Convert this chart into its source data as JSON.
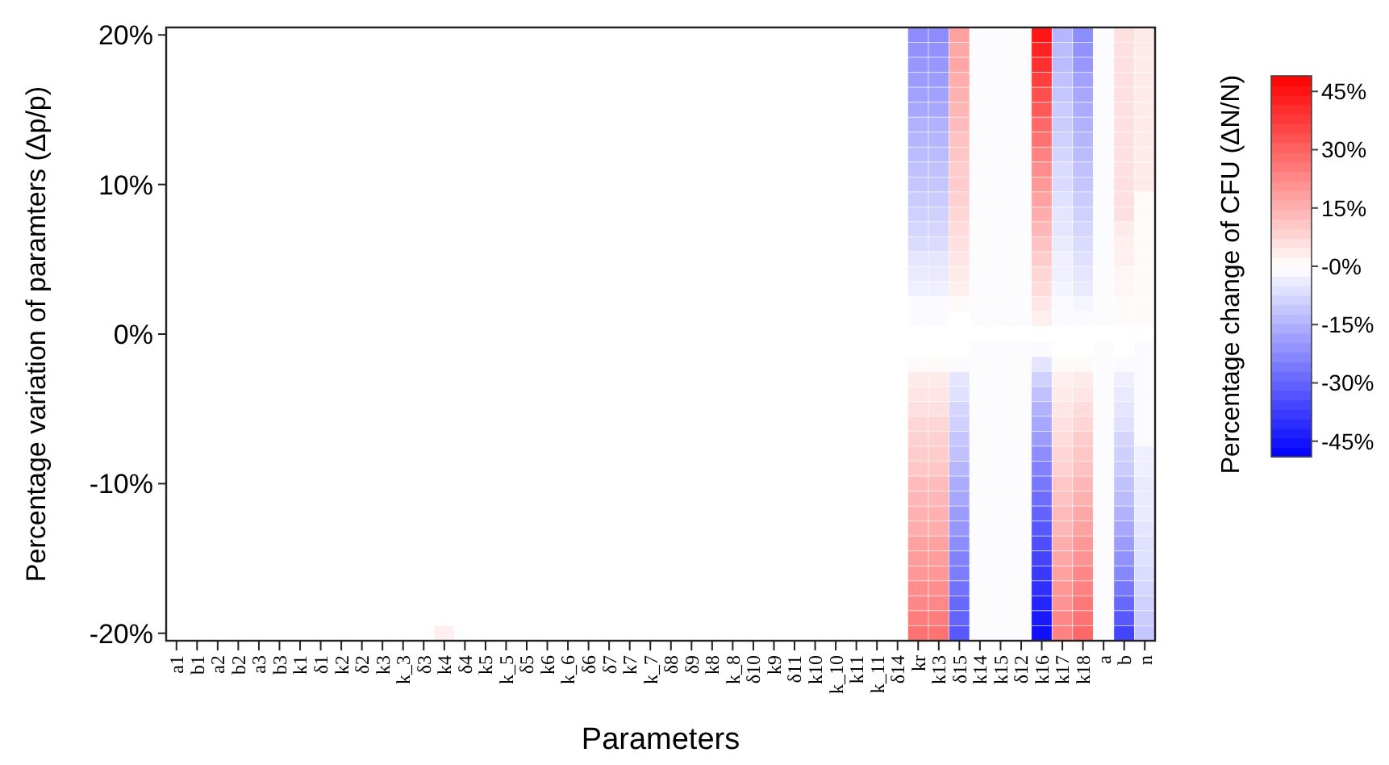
{
  "chart_data": {
    "type": "heatmap",
    "xlabel": "Parameters",
    "ylabel": "Percentage variation of paramters (Δp/p)",
    "clabel": "Percentage change of CFU (ΔN/N)",
    "categories": [
      "a1",
      "b1",
      "a2",
      "b2",
      "a3",
      "b3",
      "k1",
      "δ1",
      "k2",
      "δ2",
      "k3",
      "k_3",
      "δ3",
      "k4",
      "δ4",
      "k5",
      "k_5",
      "δ5",
      "k6",
      "k_6",
      "δ6",
      "δ7",
      "k7",
      "k_7",
      "δ8",
      "δ9",
      "k8",
      "k_8",
      "δ10",
      "k9",
      "δ11",
      "k10",
      "k_10",
      "k11",
      "k_11",
      "δ14",
      "kr",
      "k13",
      "δ15",
      "k14",
      "k15",
      "δ12",
      "k16",
      "k17",
      "k18",
      "a",
      "b",
      "n"
    ],
    "y_categories": [
      "20%",
      null,
      null,
      null,
      null,
      null,
      null,
      null,
      null,
      null,
      "10%",
      null,
      null,
      null,
      null,
      null,
      null,
      null,
      null,
      null,
      "0%",
      null,
      null,
      null,
      null,
      null,
      null,
      null,
      null,
      null,
      "-10%",
      null,
      null,
      null,
      null,
      null,
      null,
      null,
      null,
      null,
      "-20%"
    ],
    "clim": [
      -49,
      49
    ],
    "cticks": [
      {
        "value": -45,
        "label": "-45%"
      },
      {
        "value": -30,
        "label": "-30%"
      },
      {
        "value": -15,
        "label": "-15%"
      },
      {
        "value": 0,
        "label": "-0%"
      },
      {
        "value": 15,
        "label": "15%"
      },
      {
        "value": 30,
        "label": "30%"
      },
      {
        "value": 45,
        "label": "45%"
      }
    ],
    "cells": [
      [
        0,
        0,
        0,
        0,
        0,
        0,
        0,
        0,
        0,
        0,
        0,
        0,
        0,
        0,
        0,
        0,
        0,
        0,
        0,
        0,
        0,
        0,
        0,
        0,
        0,
        0,
        0,
        0,
        0,
        0,
        0,
        0,
        0,
        0,
        0,
        0,
        -22,
        -22,
        18,
        -0.5,
        -0.5,
        -0.5,
        45,
        -14,
        -22,
        -0.5,
        6,
        4
      ],
      [
        0,
        0,
        0,
        0,
        0,
        0,
        0,
        0,
        0,
        0,
        0,
        0,
        0,
        0,
        0,
        0,
        0,
        0,
        0,
        0,
        0,
        0,
        0,
        0,
        0,
        0,
        0,
        0,
        0,
        0,
        0,
        0,
        0,
        0,
        0,
        0,
        -21,
        -21,
        17,
        -0.5,
        -0.5,
        -0.5,
        42,
        -13,
        -21,
        -0.5,
        6,
        4
      ],
      [
        0,
        0,
        0,
        0,
        0,
        0,
        0,
        0,
        0,
        0,
        0,
        0,
        0,
        0,
        0,
        0,
        0,
        0,
        0,
        0,
        0,
        0,
        0,
        0,
        0,
        0,
        0,
        0,
        0,
        0,
        0,
        0,
        0,
        0,
        0,
        0,
        -20,
        -20,
        17,
        -0.5,
        -0.5,
        -0.5,
        40,
        -13,
        -20,
        -0.5,
        6,
        4
      ],
      [
        0,
        0,
        0,
        0,
        0,
        0,
        0,
        0,
        0,
        0,
        0,
        0,
        0,
        0,
        0,
        0,
        0,
        0,
        0,
        0,
        0,
        0,
        0,
        0,
        0,
        0,
        0,
        0,
        0,
        0,
        0,
        0,
        0,
        0,
        0,
        0,
        -19,
        -19,
        16,
        -0.5,
        -0.5,
        -0.5,
        37,
        -12,
        -18,
        -0.5,
        6,
        4
      ],
      [
        0,
        0,
        0,
        0,
        0,
        0,
        0,
        0,
        0,
        0,
        0,
        0,
        0,
        0,
        0,
        0,
        0,
        0,
        0,
        0,
        0,
        0,
        0,
        0,
        0,
        0,
        0,
        0,
        0,
        0,
        0,
        0,
        0,
        0,
        0,
        0,
        -18,
        -18,
        15,
        -0.5,
        -0.5,
        -0.5,
        34,
        -11,
        -17,
        -0.5,
        6,
        4
      ],
      [
        0,
        0,
        0,
        0,
        0,
        0,
        0,
        0,
        0,
        0,
        0,
        0,
        0,
        0,
        0,
        0,
        0,
        0,
        0,
        0,
        0,
        0,
        0,
        0,
        0,
        0,
        0,
        0,
        0,
        0,
        0,
        0,
        0,
        0,
        0,
        0,
        -17,
        -17,
        14,
        -0.5,
        -0.5,
        -0.5,
        32,
        -10,
        -16,
        -0.5,
        6,
        4
      ],
      [
        0,
        0,
        0,
        0,
        0,
        0,
        0,
        0,
        0,
        0,
        0,
        0,
        0,
        0,
        0,
        0,
        0,
        0,
        0,
        0,
        0,
        0,
        0,
        0,
        0,
        0,
        0,
        0,
        0,
        0,
        0,
        0,
        0,
        0,
        0,
        0,
        -15,
        -15,
        13,
        -0.5,
        -0.5,
        -0.5,
        29,
        -10,
        -15,
        -0.5,
        6,
        4
      ],
      [
        0,
        0,
        0,
        0,
        0,
        0,
        0,
        0,
        0,
        0,
        0,
        0,
        0,
        0,
        0,
        0,
        0,
        0,
        0,
        0,
        0,
        0,
        0,
        0,
        0,
        0,
        0,
        0,
        0,
        0,
        0,
        0,
        0,
        0,
        0,
        0,
        -14,
        -14,
        12,
        -0.5,
        -0.5,
        -0.5,
        27,
        -9,
        -14,
        -0.5,
        6,
        4
      ],
      [
        0,
        0,
        0,
        0,
        0,
        0,
        0,
        0,
        0,
        0,
        0,
        0,
        0,
        0,
        0,
        0,
        0,
        0,
        0,
        0,
        0,
        0,
        0,
        0,
        0,
        0,
        0,
        0,
        0,
        0,
        0,
        0,
        0,
        0,
        0,
        0,
        -13,
        -13,
        11,
        -0.5,
        -0.5,
        -0.5,
        24,
        -8,
        -13,
        -0.5,
        6,
        4
      ],
      [
        0,
        0,
        0,
        0,
        0,
        0,
        0,
        0,
        0,
        0,
        0,
        0,
        0,
        0,
        0,
        0,
        0,
        0,
        0,
        0,
        0,
        0,
        0,
        0,
        0,
        0,
        0,
        0,
        0,
        0,
        0,
        0,
        0,
        0,
        0,
        0,
        -12,
        -12,
        10,
        -0.5,
        -0.5,
        -0.5,
        22,
        -7,
        -12,
        -0.5,
        6,
        4
      ],
      [
        0,
        0,
        0,
        0,
        0,
        0,
        0,
        0,
        0,
        0,
        0,
        0,
        0,
        0,
        0,
        0,
        0,
        0,
        0,
        0,
        0,
        0,
        0,
        0,
        0,
        0,
        0,
        0,
        0,
        0,
        0,
        0,
        0,
        0,
        0,
        0,
        -11,
        -11,
        10,
        -0.5,
        -0.5,
        -0.5,
        20,
        -7,
        -11,
        -0.5,
        6,
        4
      ],
      [
        0,
        0,
        0,
        0,
        0,
        0,
        0,
        0,
        0,
        0,
        0,
        0,
        0,
        0,
        0,
        0,
        0,
        0,
        0,
        0,
        0,
        0,
        0,
        0,
        0,
        0,
        0,
        0,
        0,
        0,
        0,
        0,
        0,
        0,
        0,
        0,
        -10,
        -10,
        9,
        -0.5,
        -0.5,
        -0.5,
        18,
        -6,
        -10,
        -0.5,
        6,
        1
      ],
      [
        0,
        0,
        0,
        0,
        0,
        0,
        0,
        0,
        0,
        0,
        0,
        0,
        0,
        0,
        0,
        0,
        0,
        0,
        0,
        0,
        0,
        0,
        0,
        0,
        0,
        0,
        0,
        0,
        0,
        0,
        0,
        0,
        0,
        0,
        0,
        0,
        -9,
        -9,
        8,
        -0.5,
        -0.5,
        -0.5,
        16,
        -5,
        -9,
        -0.5,
        6,
        1
      ],
      [
        0,
        0,
        0,
        0,
        0,
        0,
        0,
        0,
        0,
        0,
        0,
        0,
        0,
        0,
        0,
        0,
        0,
        0,
        0,
        0,
        0,
        0,
        0,
        0,
        0,
        0,
        0,
        0,
        0,
        0,
        0,
        0,
        0,
        0,
        0,
        0,
        -8,
        -8,
        7,
        -0.5,
        -0.5,
        -0.5,
        14,
        -5,
        -8,
        -0.5,
        4,
        1
      ],
      [
        0,
        0,
        0,
        0,
        0,
        0,
        0,
        0,
        0,
        0,
        0,
        0,
        0,
        0,
        0,
        0,
        0,
        0,
        0,
        0,
        0,
        0,
        0,
        0,
        0,
        0,
        0,
        0,
        0,
        0,
        0,
        0,
        0,
        0,
        0,
        0,
        -7,
        -7,
        6,
        -0.5,
        -0.5,
        -0.5,
        12,
        -4,
        -7,
        -0.5,
        3,
        1
      ],
      [
        0,
        0,
        0,
        0,
        0,
        0,
        0,
        0,
        0,
        0,
        0,
        0,
        0,
        0,
        0,
        0,
        0,
        0,
        0,
        0,
        0,
        0,
        0,
        0,
        0,
        0,
        0,
        0,
        0,
        0,
        0,
        0,
        0,
        0,
        0,
        0,
        -5,
        -5,
        5,
        -0.5,
        -0.5,
        -0.5,
        10,
        -3,
        -6,
        -0.5,
        3,
        1
      ],
      [
        0,
        0,
        0,
        0,
        0,
        0,
        0,
        0,
        0,
        0,
        0,
        0,
        0,
        0,
        0,
        0,
        0,
        0,
        0,
        0,
        0,
        0,
        0,
        0,
        0,
        0,
        0,
        0,
        0,
        0,
        0,
        0,
        0,
        0,
        0,
        0,
        -4,
        -4,
        4,
        -0.5,
        -0.5,
        -0.5,
        8,
        -3,
        -5,
        -0.5,
        2,
        1
      ],
      [
        0,
        0,
        0,
        0,
        0,
        0,
        0,
        0,
        0,
        0,
        0,
        0,
        0,
        0,
        0,
        0,
        0,
        0,
        0,
        0,
        0,
        0,
        0,
        0,
        0,
        0,
        0,
        0,
        0,
        0,
        0,
        0,
        0,
        0,
        0,
        0,
        -3,
        -3,
        3,
        -0.5,
        -0.5,
        -0.5,
        7,
        -2,
        -4,
        -0.5,
        2,
        1
      ],
      [
        0,
        0,
        0,
        0,
        0,
        0,
        0,
        0,
        0,
        0,
        0,
        0,
        0,
        0,
        0,
        0,
        0,
        0,
        0,
        0,
        0,
        0,
        0,
        0,
        0,
        0,
        0,
        0,
        0,
        0,
        0,
        0,
        0,
        0,
        0,
        0,
        -1,
        -1,
        1,
        -0.5,
        -0.5,
        -0.5,
        5,
        -1,
        -2,
        -0.5,
        1,
        1
      ],
      [
        0,
        0,
        0,
        0,
        0,
        0,
        0,
        0,
        0,
        0,
        0,
        0,
        0,
        0,
        0,
        0,
        0,
        0,
        0,
        0,
        0,
        0,
        0,
        0,
        0,
        0,
        0,
        0,
        0,
        0,
        0,
        0,
        0,
        0,
        0,
        0,
        -1,
        -1,
        0,
        -0.5,
        -0.5,
        -0.5,
        3,
        -1,
        -1,
        -0.5,
        1,
        1
      ],
      [
        0,
        0,
        0,
        0,
        0,
        0,
        0,
        0,
        0,
        0,
        0,
        0,
        0,
        0,
        0,
        0,
        0,
        0,
        0,
        0,
        0,
        0,
        0,
        0,
        0,
        0,
        0,
        0,
        0,
        0,
        0,
        0,
        0,
        0,
        0,
        0,
        0,
        0,
        0,
        0,
        0,
        0,
        0,
        0,
        0,
        0,
        0,
        0
      ],
      [
        0,
        0,
        0,
        0,
        0,
        0,
        0,
        0,
        0,
        0,
        0,
        0,
        0,
        0,
        0,
        0,
        0,
        0,
        0,
        0,
        0,
        0,
        0,
        0,
        0,
        0,
        0,
        0,
        0,
        0,
        0,
        0,
        0,
        0,
        0,
        0,
        0,
        0,
        0,
        -0.5,
        -0.5,
        -0.5,
        -1,
        0,
        0,
        -0.5,
        0,
        -1
      ],
      [
        0,
        0,
        0,
        0,
        0,
        0,
        0,
        0,
        0,
        0,
        0,
        0,
        0,
        0,
        0,
        0,
        0,
        0,
        0,
        0,
        0,
        0,
        0,
        0,
        0,
        0,
        0,
        0,
        0,
        0,
        0,
        0,
        0,
        0,
        0,
        0,
        1,
        1,
        -1,
        -0.5,
        -0.5,
        -0.5,
        -5,
        1,
        1,
        -0.5,
        -1,
        -1
      ],
      [
        0,
        0,
        0,
        0,
        0,
        0,
        0,
        0,
        0,
        0,
        0,
        0,
        0,
        0,
        0,
        0,
        0,
        0,
        0,
        0,
        0,
        0,
        0,
        0,
        0,
        0,
        0,
        0,
        0,
        0,
        0,
        0,
        0,
        0,
        0,
        0,
        4,
        4,
        -5,
        -0.5,
        -0.5,
        -0.5,
        -9,
        3,
        4,
        -0.5,
        -3,
        -1
      ],
      [
        0,
        0,
        0,
        0,
        0,
        0,
        0,
        0,
        0,
        0,
        0,
        0,
        0,
        0,
        0,
        0,
        0,
        0,
        0,
        0,
        0,
        0,
        0,
        0,
        0,
        0,
        0,
        0,
        0,
        0,
        0,
        0,
        0,
        0,
        0,
        0,
        5,
        5,
        -6,
        -0.5,
        -0.5,
        -0.5,
        -12,
        4,
        5,
        -0.5,
        -4,
        -1
      ],
      [
        0,
        0,
        0,
        0,
        0,
        0,
        0,
        0,
        0,
        0,
        0,
        0,
        0,
        0,
        0,
        0,
        0,
        0,
        0,
        0,
        0,
        0,
        0,
        0,
        0,
        0,
        0,
        0,
        0,
        0,
        0,
        0,
        0,
        0,
        0,
        0,
        6,
        6,
        -8,
        -0.5,
        -0.5,
        -0.5,
        -15,
        5,
        7,
        -0.5,
        -5,
        -1
      ],
      [
        0,
        0,
        0,
        0,
        0,
        0,
        0,
        0,
        0,
        0,
        0,
        0,
        0,
        0,
        0,
        0,
        0,
        0,
        0,
        0,
        0,
        0,
        0,
        0,
        0,
        0,
        0,
        0,
        0,
        0,
        0,
        0,
        0,
        0,
        0,
        0,
        8,
        8,
        -9,
        -0.5,
        -0.5,
        -0.5,
        -17,
        6,
        8,
        -0.5,
        -6,
        -1
      ],
      [
        0,
        0,
        0,
        0,
        0,
        0,
        0,
        0,
        0,
        0,
        0,
        0,
        0,
        0,
        0,
        0,
        0,
        0,
        0,
        0,
        0,
        0,
        0,
        0,
        0,
        0,
        0,
        0,
        0,
        0,
        0,
        0,
        0,
        0,
        0,
        0,
        9,
        9,
        -11,
        -0.5,
        -0.5,
        -0.5,
        -19,
        7,
        10,
        -0.5,
        -8,
        -1
      ],
      [
        0,
        0,
        0,
        0,
        0,
        0,
        0,
        0,
        0,
        0,
        0,
        0,
        0,
        0,
        0,
        0,
        0,
        0,
        0,
        0,
        0,
        0,
        0,
        0,
        0,
        0,
        0,
        0,
        0,
        0,
        0,
        0,
        0,
        0,
        0,
        0,
        10,
        10,
        -12,
        -0.5,
        -0.5,
        -0.5,
        -22,
        8,
        11,
        -0.5,
        -9,
        -3
      ],
      [
        0,
        0,
        0,
        0,
        0,
        0,
        0,
        0,
        0,
        0,
        0,
        0,
        0,
        0,
        0,
        0,
        0,
        0,
        0,
        0,
        0,
        0,
        0,
        0,
        0,
        0,
        0,
        0,
        0,
        0,
        0,
        0,
        0,
        0,
        0,
        0,
        11,
        11,
        -14,
        -0.5,
        -0.5,
        -0.5,
        -24,
        9,
        12,
        -0.5,
        -10,
        -3
      ],
      [
        0,
        0,
        0,
        0,
        0,
        0,
        0,
        0,
        0,
        0,
        0,
        0,
        0,
        0,
        0,
        0,
        0,
        0,
        0,
        0,
        0,
        0,
        0,
        0,
        0,
        0,
        0,
        0,
        0,
        0,
        0,
        0,
        0,
        0,
        0,
        0,
        13,
        13,
        -16,
        -0.5,
        -0.5,
        -0.5,
        -26,
        11,
        14,
        -0.5,
        -12,
        -4
      ],
      [
        0,
        0,
        0,
        0,
        0,
        0,
        0,
        0,
        0,
        0,
        0,
        0,
        0,
        0,
        0,
        0,
        0,
        0,
        0,
        0,
        0,
        0,
        0,
        0,
        0,
        0,
        0,
        0,
        0,
        0,
        0,
        0,
        0,
        0,
        0,
        0,
        14,
        14,
        -17,
        -0.5,
        -0.5,
        -0.5,
        -28,
        12,
        15,
        -0.5,
        -13,
        -4
      ],
      [
        0,
        0,
        0,
        0,
        0,
        0,
        0,
        0,
        0,
        0,
        0,
        0,
        0,
        0,
        0,
        0,
        0,
        0,
        0,
        0,
        0,
        0,
        0,
        0,
        0,
        0,
        0,
        0,
        0,
        0,
        0,
        0,
        0,
        0,
        0,
        0,
        15,
        15,
        -19,
        -0.5,
        -0.5,
        -0.5,
        -30,
        13,
        17,
        -0.5,
        -15,
        -4
      ],
      [
        0,
        0,
        0,
        0,
        0,
        0,
        0,
        0,
        0,
        0,
        0,
        0,
        0,
        0,
        0,
        0,
        0,
        0,
        0,
        0,
        0,
        0,
        0,
        0,
        0,
        0,
        0,
        0,
        0,
        0,
        0,
        0,
        0,
        0,
        0,
        0,
        16,
        16,
        -20,
        -0.5,
        -0.5,
        -0.5,
        -32,
        14,
        18,
        -0.5,
        -17,
        -5
      ],
      [
        0,
        0,
        0,
        0,
        0,
        0,
        0,
        0,
        0,
        0,
        0,
        0,
        0,
        0,
        0,
        0,
        0,
        0,
        0,
        0,
        0,
        0,
        0,
        0,
        0,
        0,
        0,
        0,
        0,
        0,
        0,
        0,
        0,
        0,
        0,
        0,
        18,
        18,
        -22,
        -0.5,
        -0.5,
        -0.5,
        -34,
        16,
        20,
        -0.5,
        -19,
        -6
      ],
      [
        0,
        0,
        0,
        0,
        0,
        0,
        0,
        0,
        0,
        0,
        0,
        0,
        0,
        0,
        0,
        0,
        0,
        0,
        0,
        0,
        0,
        0,
        0,
        0,
        0,
        0,
        0,
        0,
        0,
        0,
        0,
        0,
        0,
        0,
        0,
        0,
        19,
        19,
        -24,
        -0.5,
        -0.5,
        -0.5,
        -36,
        17,
        21,
        -0.5,
        -21,
        -6
      ],
      [
        0,
        0,
        0,
        0,
        0,
        0,
        0,
        0,
        0,
        0,
        0,
        0,
        0,
        0,
        0,
        0,
        0,
        0,
        0,
        0,
        0,
        0,
        0,
        0,
        0,
        0,
        0,
        0,
        0,
        0,
        0,
        0,
        0,
        0,
        0,
        0,
        20,
        20,
        -25,
        -0.5,
        -0.5,
        -0.5,
        -38,
        18,
        23,
        -0.5,
        -23,
        -7
      ],
      [
        0,
        0,
        0,
        0,
        0,
        0,
        0,
        0,
        0,
        0,
        0,
        0,
        0,
        0,
        0,
        0,
        0,
        0,
        0,
        0,
        0,
        0,
        0,
        0,
        0,
        0,
        0,
        0,
        0,
        0,
        0,
        0,
        0,
        0,
        0,
        0,
        22,
        22,
        -27,
        -0.5,
        -0.5,
        -0.5,
        -40,
        20,
        24,
        -0.5,
        -26,
        -8
      ],
      [
        0,
        0,
        0,
        0,
        0,
        0,
        0,
        0,
        0,
        0,
        0,
        0,
        0,
        0,
        0,
        0,
        0,
        0,
        0,
        0,
        0,
        0,
        0,
        0,
        0,
        0,
        0,
        0,
        0,
        0,
        0,
        0,
        0,
        0,
        0,
        0,
        23,
        23,
        -29,
        -0.5,
        -0.5,
        -0.5,
        -42,
        21,
        26,
        -0.5,
        -29,
        -9
      ],
      [
        0,
        0,
        0,
        0,
        0,
        0,
        0,
        0,
        0,
        0,
        0,
        0,
        0,
        0,
        0,
        0,
        0,
        0,
        0,
        0,
        0,
        0,
        0,
        0,
        0,
        0,
        0,
        0,
        0,
        0,
        0,
        0,
        0,
        0,
        0,
        0,
        25,
        25,
        -30,
        -0.5,
        -0.5,
        -0.5,
        -44,
        23,
        27,
        -0.5,
        -32,
        -10
      ],
      [
        0,
        0,
        0,
        0,
        0,
        0,
        0,
        0,
        0,
        0,
        0,
        0,
        0,
        3,
        0,
        0,
        0,
        0,
        0,
        0,
        0,
        0,
        0,
        0,
        0,
        0,
        0,
        0,
        0,
        0,
        0,
        0,
        0,
        0,
        0,
        0,
        27,
        27,
        -32,
        -0.5,
        -0.5,
        -0.5,
        -46,
        24,
        29,
        -0.5,
        -36,
        -11
      ]
    ]
  }
}
